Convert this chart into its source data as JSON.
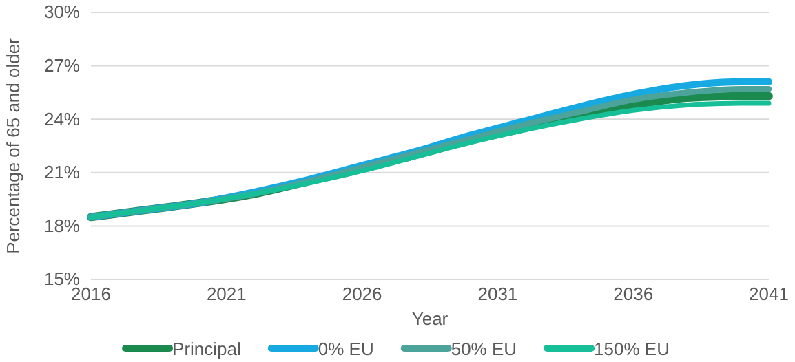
{
  "chart_data": {
    "type": "line",
    "xlabel": "Year",
    "ylabel": "Percentage of 65 and older",
    "x": [
      2016,
      2018,
      2020,
      2022,
      2024,
      2026,
      2028,
      2030,
      2032,
      2034,
      2036,
      2038,
      2040,
      2041
    ],
    "series": [
      {
        "name": "Principal",
        "color": "#1b8a4f",
        "values": [
          18.5,
          18.9,
          19.3,
          19.8,
          20.5,
          21.2,
          22.0,
          22.8,
          23.5,
          24.2,
          24.8,
          25.2,
          25.3,
          25.3
        ]
      },
      {
        "name": "0% EU",
        "color": "#17a9e1",
        "values": [
          18.5,
          18.9,
          19.3,
          19.9,
          20.6,
          21.4,
          22.2,
          23.1,
          23.9,
          24.7,
          25.4,
          25.9,
          26.1,
          26.1
        ]
      },
      {
        "name": "50% EU",
        "color": "#4ba39a",
        "values": [
          18.5,
          18.9,
          19.3,
          19.8,
          20.5,
          21.3,
          22.1,
          22.9,
          23.7,
          24.4,
          25.1,
          25.5,
          25.7,
          25.7
        ]
      },
      {
        "name": "150% EU",
        "color": "#16bf97",
        "values": [
          18.5,
          18.9,
          19.3,
          19.8,
          20.4,
          21.1,
          21.9,
          22.7,
          23.4,
          24.0,
          24.5,
          24.8,
          24.9,
          24.9
        ]
      }
    ],
    "xlim": [
      2016,
      2041
    ],
    "xticks": [
      2016,
      2021,
      2026,
      2031,
      2036,
      2041
    ],
    "ylim": [
      15,
      30
    ],
    "yticks": [
      {
        "value": 15,
        "label": "15%"
      },
      {
        "value": 18,
        "label": "18%"
      },
      {
        "value": 21,
        "label": "21%"
      },
      {
        "value": 24,
        "label": "24%"
      },
      {
        "value": 27,
        "label": "27%"
      },
      {
        "value": 30,
        "label": "30%"
      }
    ],
    "grid": "y",
    "legend": "bottom",
    "marker": "none",
    "line_style": "solid"
  }
}
